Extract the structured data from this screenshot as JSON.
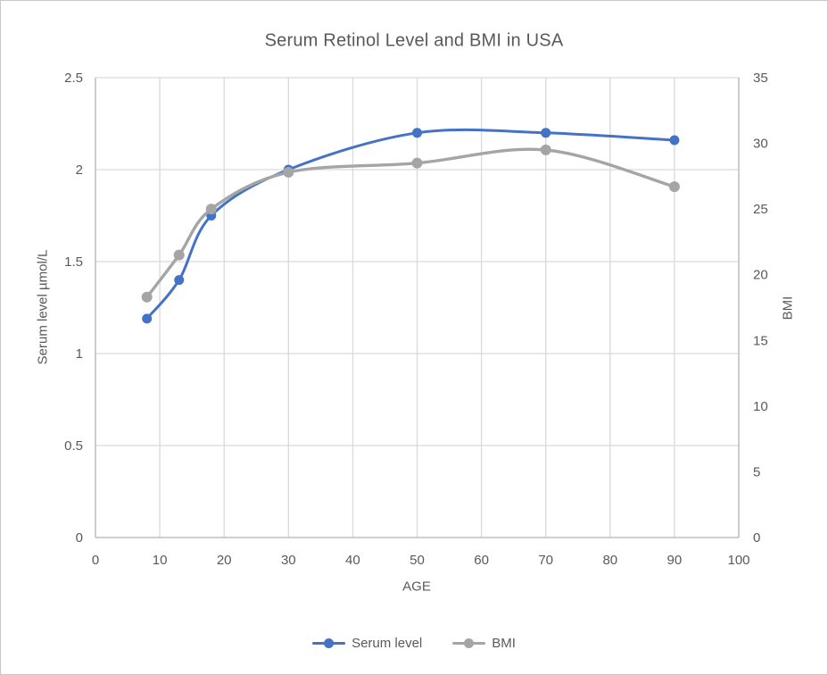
{
  "chart_data": {
    "type": "line",
    "title": "Serum Retinol Level and BMI in USA",
    "xlabel": "AGE",
    "ylabel_left": "Serum level µmol/L",
    "ylabel_right": "BMI",
    "smooth": true,
    "grid": true,
    "legend_position": "bottom",
    "x": [
      8,
      13,
      18,
      30,
      50,
      70,
      90
    ],
    "series": [
      {
        "name": "Serum level",
        "axis": "left",
        "color": "#4472C4",
        "values": [
          1.19,
          1.4,
          1.75,
          2.0,
          2.2,
          2.2,
          2.16
        ]
      },
      {
        "name": "BMI",
        "axis": "right",
        "color": "#A5A5A5",
        "values": [
          18.3,
          21.5,
          25,
          27.8,
          28.5,
          29.5,
          26.7
        ]
      }
    ],
    "x_axis": {
      "min": 0,
      "max": 100,
      "tick_labels": [
        "0",
        "10",
        "20",
        "30",
        "40",
        "50",
        "60",
        "70",
        "80",
        "90",
        "100"
      ]
    },
    "y_axis_left": {
      "min": 0,
      "max": 2.5,
      "tick_labels": [
        "0",
        "0.5",
        "1",
        "1.5",
        "2",
        "2.5"
      ]
    },
    "y_axis_right": {
      "min": 0,
      "max": 35,
      "tick_labels": [
        "0",
        "5",
        "10",
        "15",
        "20",
        "25",
        "30",
        "35"
      ]
    }
  },
  "colors": {
    "background": "#FFFFFF",
    "gridline": "#D9D9D9",
    "axis_line": "#BFBFBF",
    "text": "#595959"
  }
}
